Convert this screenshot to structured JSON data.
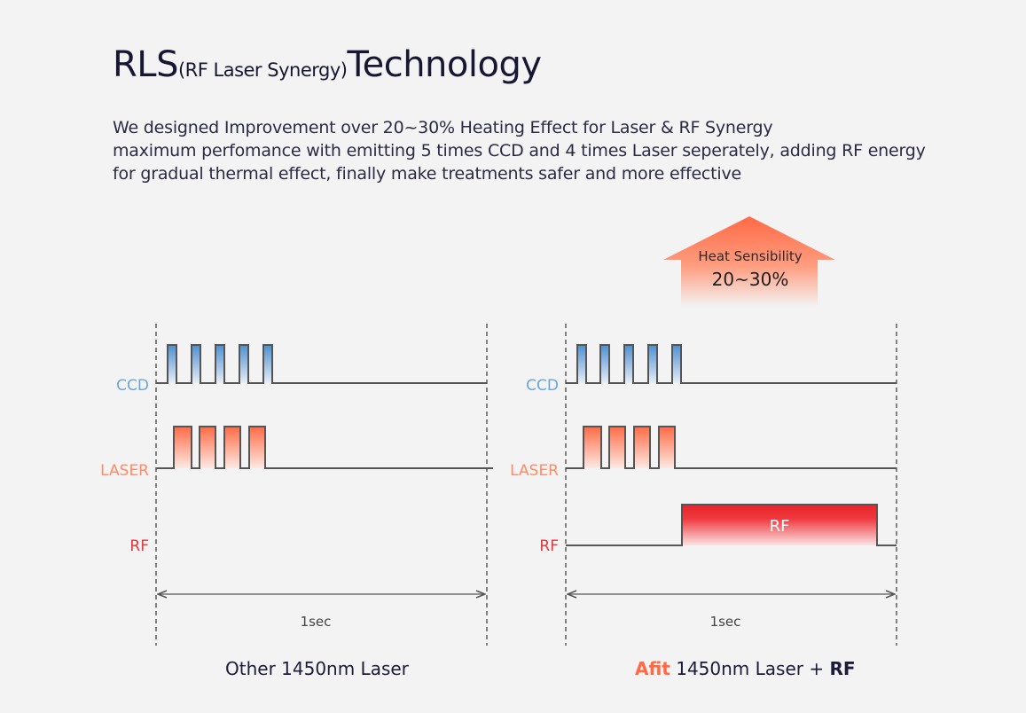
{
  "header": {
    "title_main": "RLS",
    "title_small": "(RF Laser Synergy)",
    "title_end": "Technology",
    "description": [
      "We designed Improvement over 20~30% Heating Effect for Laser & RF Synergy",
      "maximum perfomance with emitting 5 times CCD and 4 times Laser seperately, adding RF energy",
      "for gradual thermal effect, finally make treatments safer and more effective"
    ]
  },
  "arrow": {
    "line1": "Heat Sensibility",
    "line2": "20~30%"
  },
  "panels": [
    {
      "labels": {
        "ccd": "CCD",
        "laser": "LASER",
        "rf": "RF"
      },
      "duration": "1sec",
      "has_rf_pulse": false
    },
    {
      "labels": {
        "ccd": "CCD",
        "laser": "LASER",
        "rf": "RF"
      },
      "duration": "1sec",
      "has_rf_pulse": true,
      "rf_pulse_label": "RF"
    }
  ],
  "captions": {
    "left": "Other 1450nm Laser",
    "right_brand": "Afit",
    "right_middle": " 1450nm Laser + ",
    "right_end": "RF"
  },
  "colors": {
    "ccd": "#6aa6d8",
    "laser": "#ff8a65",
    "rf": "#e8343a",
    "arrow": "#ff7a55"
  }
}
